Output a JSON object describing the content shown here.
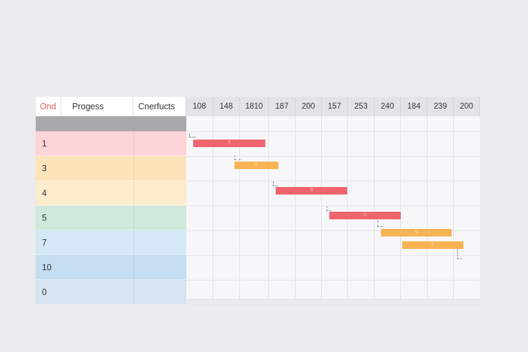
{
  "headers": {
    "id": "Ond",
    "progress": "Progess",
    "conflicts": "Cnerfucts"
  },
  "timeline": {
    "columns": [
      "108",
      "148",
      "1810",
      "187",
      "200",
      "157",
      "253",
      "240",
      "184",
      "239",
      "200"
    ]
  },
  "rows": [
    {
      "id": "1",
      "color": "#fcd4d8"
    },
    {
      "id": "3",
      "color": "#fde3ba"
    },
    {
      "id": "4",
      "color": "#fcebcd"
    },
    {
      "id": "5",
      "color": "#cfe9da"
    },
    {
      "id": "7",
      "color": "#d4e8f6"
    },
    {
      "id": "10",
      "color": "#c5ddf0"
    },
    {
      "id": "0",
      "color": "#d6e3f0"
    }
  ],
  "bars": [
    {
      "label": "0",
      "color": "#f0646b"
    },
    {
      "label": "0",
      "color": "#f7b354"
    },
    {
      "label": "0",
      "color": "#f0646b"
    },
    {
      "label": "0",
      "color": "#f0646b"
    },
    {
      "label": "0",
      "color": "#f7b354"
    },
    {
      "label": "0",
      "color": "#f7b354"
    }
  ]
}
